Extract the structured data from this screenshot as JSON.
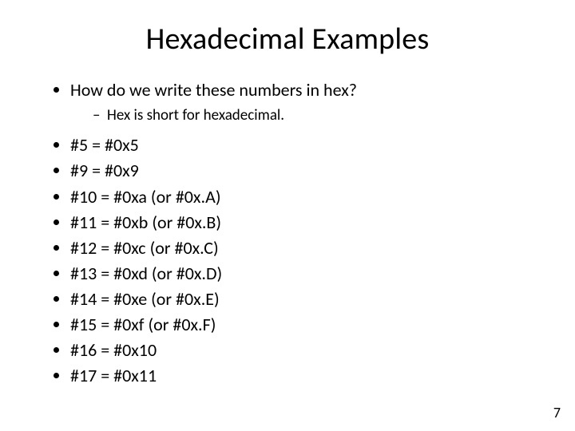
{
  "title": "Hexadecimal Examples",
  "intro": {
    "question": "How do we write these numbers in hex?",
    "sub": "Hex is short for hexadecimal."
  },
  "items": [
    "#5 = #0x5",
    "#9 = #0x9",
    "#10 = #0xa  (or #0x.A)",
    "#11 = #0xb  (or #0x.B)",
    "#12 = #0xc  (or #0x.C)",
    "#13 = #0xd  (or #0x.D)",
    "#14 = #0xe  (or #0x.E)",
    "#15 = #0xf  (or #0x.F)",
    "#16 = #0x10",
    "#17 = #0x11"
  ],
  "page_number": "7",
  "fixed_items": [
    "#5 = #0x5",
    "#9 = #0x9",
    "#10 = #0xa  (or #0x.A)",
    "#11 = #0xb  (or #0x.B)",
    "#12 = #0xc  (or #0x.C)",
    "#13 = #0xd  (or #0x.D)",
    "#14 = #0xe  (or #0x.E)",
    "#15 = #0xf  (or #0x.F)",
    "#16 = #0x10",
    "#17 = #0x11"
  ]
}
